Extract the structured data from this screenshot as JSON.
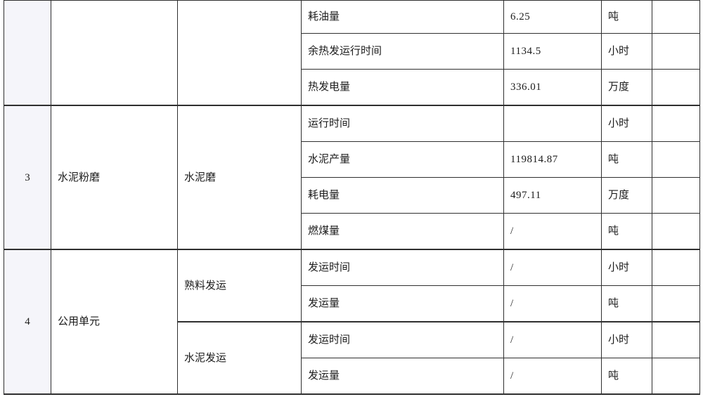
{
  "table": {
    "border_color": "#2f2f2f",
    "index_column_bg": "#f5f5fa",
    "cell_bg": "#ffffff",
    "text_color": "#1c1c1c",
    "sections": [
      {
        "index": "",
        "unit": "",
        "subunits": [
          {
            "name": "",
            "metrics": [
              {
                "metric": "耗油量",
                "value": "6.25",
                "unit": "吨",
                "note": ""
              },
              {
                "metric": "余热发运行时间",
                "value": "1134.5",
                "unit": "小时",
                "note": ""
              },
              {
                "metric": "热发电量",
                "value": "336.01",
                "unit": "万度",
                "note": ""
              }
            ]
          }
        ]
      },
      {
        "index": "3",
        "unit": "水泥粉磨",
        "subunits": [
          {
            "name": "水泥磨",
            "metrics": [
              {
                "metric": "运行时间",
                "value": "",
                "unit": "小时",
                "note": ""
              },
              {
                "metric": "水泥产量",
                "value": "119814.87",
                "unit": "吨",
                "note": ""
              },
              {
                "metric": "耗电量",
                "value": "497.11",
                "unit": "万度",
                "note": ""
              },
              {
                "metric": "燃煤量",
                "value": "/",
                "unit": "吨",
                "note": ""
              }
            ]
          }
        ]
      },
      {
        "index": "4",
        "unit": "公用单元",
        "subunits": [
          {
            "name": "熟料发运",
            "metrics": [
              {
                "metric": "发运时间",
                "value": "/",
                "unit": "小时",
                "note": ""
              },
              {
                "metric": "发运量",
                "value": "/",
                "unit": "吨",
                "note": ""
              }
            ]
          },
          {
            "name": "水泥发运",
            "metrics": [
              {
                "metric": "发运时间",
                "value": "/",
                "unit": "小时",
                "note": ""
              },
              {
                "metric": "发运量",
                "value": "/",
                "unit": "吨",
                "note": ""
              }
            ]
          }
        ]
      }
    ]
  }
}
